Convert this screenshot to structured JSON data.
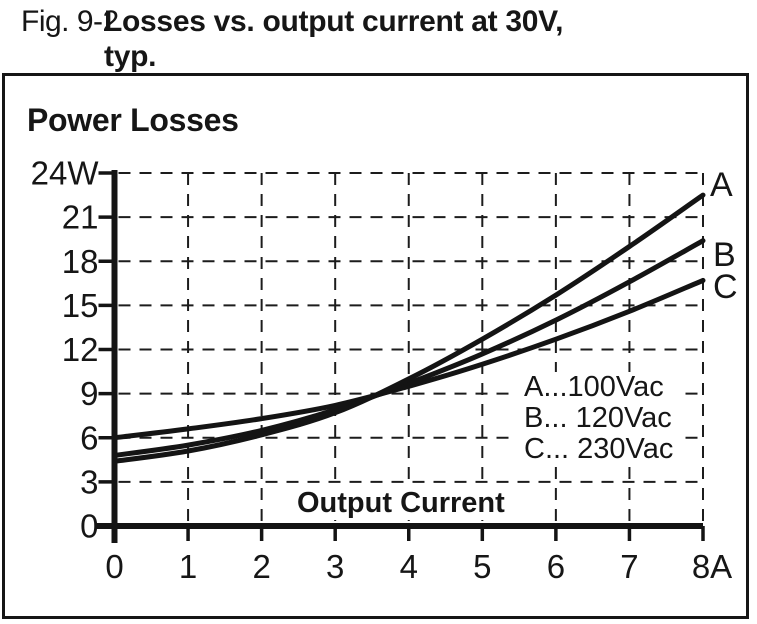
{
  "caption": {
    "fig_label": "Fig. 9-2",
    "title_line1": "Losses vs. output current at 30V,",
    "title_line2": "typ."
  },
  "chart_data": {
    "type": "line",
    "title": "Losses vs. output current at 30V, typ.",
    "ylabel": "Power Losses",
    "xlabel": "Output Current",
    "xlim": [
      0,
      8
    ],
    "ylim": [
      0,
      24
    ],
    "x_unit": "A",
    "y_unit": "W",
    "grid": "dashed",
    "legend_position": "inside-right",
    "x_ticks": [
      0,
      1,
      2,
      3,
      4,
      5,
      6,
      7,
      8
    ],
    "x_tick_labels": [
      "0",
      "1",
      "2",
      "3",
      "4",
      "5",
      "6",
      "7",
      "8A"
    ],
    "y_ticks": [
      0,
      3,
      6,
      9,
      12,
      15,
      18,
      21,
      24
    ],
    "y_tick_labels": [
      "0",
      "3",
      "6",
      "9",
      "12",
      "15",
      "18",
      "21",
      "24W"
    ],
    "x": [
      0,
      1,
      2,
      3,
      4,
      5,
      6,
      7,
      8
    ],
    "series": [
      {
        "name": "A",
        "legend": "A...100Vac",
        "values": [
          4.4,
          5.1,
          6.2,
          7.7,
          10.0,
          12.7,
          15.7,
          19.0,
          22.5
        ]
      },
      {
        "name": "B",
        "legend": "B... 120Vac",
        "values": [
          4.8,
          5.5,
          6.5,
          7.9,
          9.7,
          11.7,
          14.0,
          16.6,
          19.4
        ]
      },
      {
        "name": "C",
        "legend": "C... 230Vac",
        "values": [
          6.0,
          6.6,
          7.3,
          8.2,
          9.5,
          11.0,
          12.7,
          14.6,
          16.7
        ]
      }
    ],
    "line_color": "#141414"
  }
}
